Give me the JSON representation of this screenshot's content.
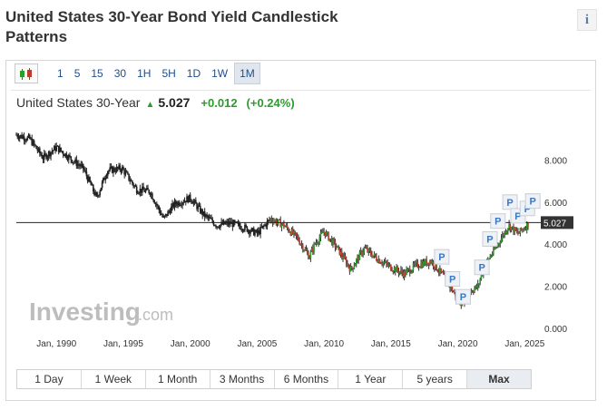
{
  "page": {
    "title": "United States 30-Year Bond Yield Candlestick Patterns",
    "info_icon": "i"
  },
  "toolbar": {
    "candle_icon": "candlestick-icon",
    "intervals": [
      "1",
      "5",
      "15",
      "30",
      "1H",
      "5H",
      "1D",
      "1W",
      "1M"
    ],
    "active_interval": "1M"
  },
  "quote": {
    "name": "United States 30-Year",
    "price": "5.027",
    "change": "+0.012",
    "change_pct": "(+0.24%)"
  },
  "watermark": {
    "brand": "Investing",
    "suffix": ".com"
  },
  "pattern_marker": "P",
  "ranges": [
    "1 Day",
    "1 Week",
    "1 Month",
    "3 Months",
    "6 Months",
    "1 Year",
    "5 years",
    "Max"
  ],
  "active_range": "Max",
  "colors": {
    "up": "#2a9d2a",
    "down": "#c0392b",
    "link": "#1f4e8c"
  },
  "chart_data": {
    "type": "line",
    "title": "",
    "xlabel": "",
    "ylabel": "",
    "x_tick_labels": [
      "Jan, 1990",
      "Jan, 1995",
      "Jan, 2000",
      "Jan, 2005",
      "Jan, 2010",
      "Jan, 2015",
      "Jan, 2020",
      "Jan, 2025"
    ],
    "y_tick_labels": [
      "0.000",
      "2.000",
      "4.000",
      "6.000",
      "8.000"
    ],
    "ylim": [
      0,
      10
    ],
    "current_value_label": "5.027",
    "grid": false,
    "series": [
      {
        "x": [
          1987.0,
          1988.0,
          1989.0,
          1990.0,
          1991.0,
          1992.0,
          1993.0,
          1993.8,
          1994.9,
          1996.0,
          1997.0,
          1998.0,
          1998.8,
          2000.0,
          2001.0,
          2002.0,
          2003.0,
          2004.0,
          2005.0,
          2006.0,
          2007.0,
          2008.0,
          2008.9,
          2009.3,
          2010.0,
          2011.0,
          2012.0,
          2013.0,
          2014.0,
          2015.0,
          2016.0,
          2016.9,
          2018.0,
          2018.9,
          2020.2,
          2020.8,
          2021.5,
          2022.0,
          2022.8,
          2023.8,
          2024.5,
          2025.3
        ],
        "y": [
          9.2,
          9.0,
          8.1,
          8.6,
          8.1,
          7.6,
          6.2,
          7.5,
          7.6,
          6.6,
          6.5,
          5.2,
          5.9,
          6.2,
          5.4,
          4.9,
          5.0,
          4.8,
          4.5,
          5.2,
          4.9,
          4.3,
          3.4,
          4.0,
          4.6,
          3.8,
          2.8,
          3.8,
          3.3,
          2.9,
          2.6,
          3.0,
          3.2,
          2.5,
          1.2,
          1.7,
          2.0,
          3.0,
          3.8,
          4.9,
          4.5,
          5.0
        ]
      }
    ],
    "pattern_markers_count": 10
  }
}
